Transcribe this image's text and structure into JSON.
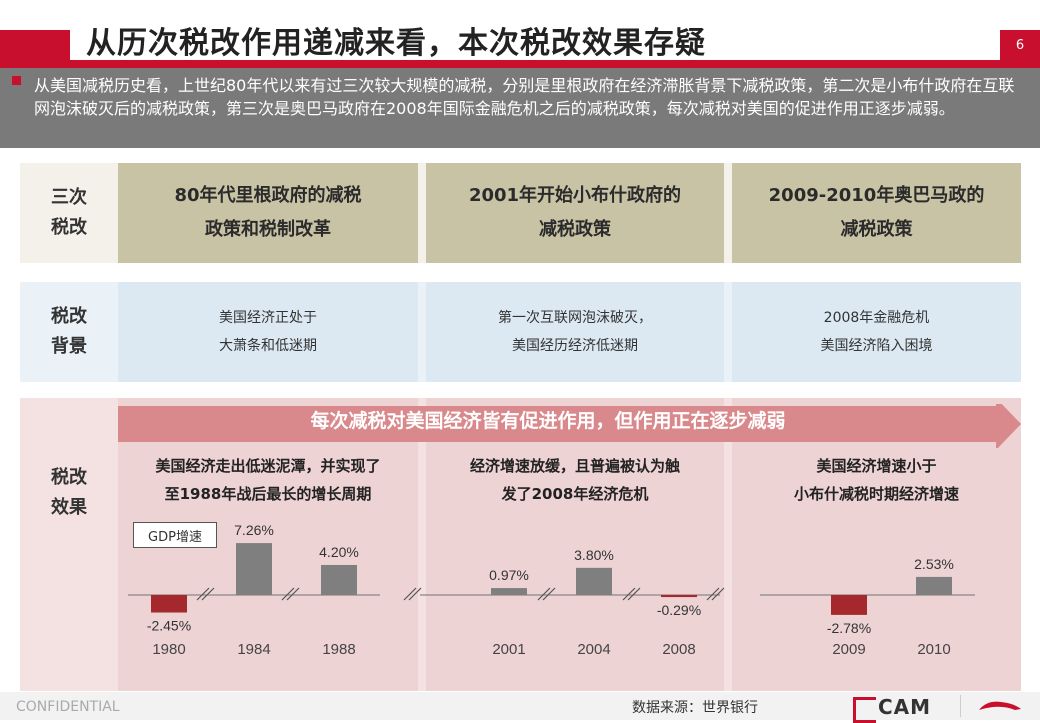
{
  "title": "从历次税改作用递减来看，本次税改效果存疑",
  "page_number": "6",
  "intro": "从美国减税历史看，上世纪80年代以来有过三次较大规模的减税，分别是里根政府在经济滞胀背景下减税政策，第二次是小布什政府在互联网泡沫破灭后的减税政策，第三次是奥巴马政府在2008年国际金融危机之后的减税政策，每次减税对美国的促进作用正逐步减弱。",
  "rows": {
    "reforms": {
      "label_line1": "三次",
      "label_line2": "税改",
      "cols": [
        {
          "line1": "80年代里根政府的减税",
          "line2": "政策和税制改革"
        },
        {
          "line1": "2001年开始小布什政府的",
          "line2": "减税政策"
        },
        {
          "line1": "2009-2010年奥巴马政的",
          "line2": "减税政策"
        }
      ]
    },
    "background": {
      "label_line1": "税改",
      "label_line2": "背景",
      "cols": [
        {
          "line1": "美国经济正处于",
          "line2": "大萧条和低迷期"
        },
        {
          "line1": "第一次互联网泡沫破灭，",
          "line2": "美国经历经济低迷期"
        },
        {
          "line1": "2008年金融危机",
          "line2": "美国经济陷入困境"
        }
      ]
    },
    "effect": {
      "label_line1": "税改",
      "label_line2": "效果",
      "arrow_text": "每次减税对美国经济皆有促进作用，但作用正在逐步减弱",
      "cols": [
        {
          "line1": "美国经济走出低迷泥潭，并实现了",
          "line2": "至1988年战后最长的增长周期"
        },
        {
          "line1": "经济增速放缓，且普遍被认为触",
          "line2": "发了2008年经济危机"
        },
        {
          "line1": "美国经济增速小于",
          "line2": "小布什减税时期经济增速"
        }
      ]
    }
  },
  "chart_data": {
    "type": "bar",
    "legend": "GDP增速",
    "categories": [
      "1980",
      "1984",
      "1988",
      "2001",
      "2004",
      "2008",
      "2009",
      "2010"
    ],
    "values": [
      -2.45,
      7.26,
      4.2,
      0.97,
      3.8,
      -0.29,
      -2.78,
      2.53
    ],
    "value_labels": [
      "-2.45%",
      "7.26%",
      "4.20%",
      "0.97%",
      "3.80%",
      "-0.29%",
      "-2.78%",
      "2.53%"
    ],
    "colors": {
      "positive": "#7f7f7f",
      "negative": "#a5292c"
    }
  },
  "footer": {
    "confidential": "CONFIDENTIAL",
    "source": "数据来源：世界银行",
    "logo": "CAM"
  }
}
